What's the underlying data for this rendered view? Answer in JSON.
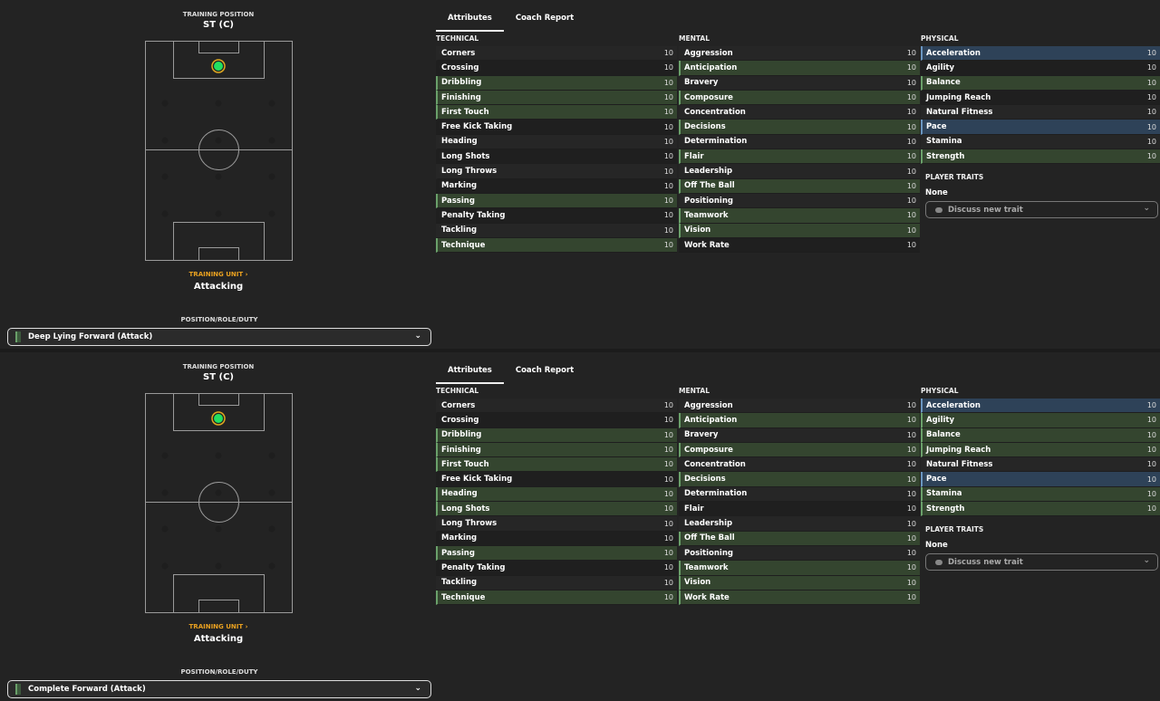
{
  "colors": {
    "key": "#34452f",
    "primary": "#2e4258",
    "accent": "#e8a020",
    "player": "#22e060"
  },
  "panels": [
    {
      "training_position_label": "TRAINING POSITION",
      "training_position": "ST (C)",
      "training_unit_label": "TRAINING UNIT ›",
      "training_unit": "Attacking",
      "prd_label": "POSITION/ROLE/DUTY",
      "role": "Deep Lying Forward (Attack)",
      "tabs": [
        "Attributes",
        "Coach Report"
      ],
      "columns": [
        {
          "title": "TECHNICAL",
          "rows": [
            {
              "name": "Corners",
              "value": "10",
              "hl": ""
            },
            {
              "name": "Crossing",
              "value": "10",
              "hl": ""
            },
            {
              "name": "Dribbling",
              "value": "10",
              "hl": "key"
            },
            {
              "name": "Finishing",
              "value": "10",
              "hl": "key"
            },
            {
              "name": "First Touch",
              "value": "10",
              "hl": "key"
            },
            {
              "name": "Free Kick Taking",
              "value": "10",
              "hl": ""
            },
            {
              "name": "Heading",
              "value": "10",
              "hl": ""
            },
            {
              "name": "Long Shots",
              "value": "10",
              "hl": ""
            },
            {
              "name": "Long Throws",
              "value": "10",
              "hl": ""
            },
            {
              "name": "Marking",
              "value": "10",
              "hl": ""
            },
            {
              "name": "Passing",
              "value": "10",
              "hl": "key"
            },
            {
              "name": "Penalty Taking",
              "value": "10",
              "hl": ""
            },
            {
              "name": "Tackling",
              "value": "10",
              "hl": ""
            },
            {
              "name": "Technique",
              "value": "10",
              "hl": "key"
            }
          ]
        },
        {
          "title": "MENTAL",
          "rows": [
            {
              "name": "Aggression",
              "value": "10",
              "hl": ""
            },
            {
              "name": "Anticipation",
              "value": "10",
              "hl": "key"
            },
            {
              "name": "Bravery",
              "value": "10",
              "hl": ""
            },
            {
              "name": "Composure",
              "value": "10",
              "hl": "key"
            },
            {
              "name": "Concentration",
              "value": "10",
              "hl": ""
            },
            {
              "name": "Decisions",
              "value": "10",
              "hl": "key"
            },
            {
              "name": "Determination",
              "value": "10",
              "hl": ""
            },
            {
              "name": "Flair",
              "value": "10",
              "hl": "key"
            },
            {
              "name": "Leadership",
              "value": "10",
              "hl": ""
            },
            {
              "name": "Off The Ball",
              "value": "10",
              "hl": "key"
            },
            {
              "name": "Positioning",
              "value": "10",
              "hl": ""
            },
            {
              "name": "Teamwork",
              "value": "10",
              "hl": "key"
            },
            {
              "name": "Vision",
              "value": "10",
              "hl": "key"
            },
            {
              "name": "Work Rate",
              "value": "10",
              "hl": ""
            }
          ]
        },
        {
          "title": "PHYSICAL",
          "rows": [
            {
              "name": "Acceleration",
              "value": "10",
              "hl": "prim"
            },
            {
              "name": "Agility",
              "value": "10",
              "hl": ""
            },
            {
              "name": "Balance",
              "value": "10",
              "hl": "key"
            },
            {
              "name": "Jumping Reach",
              "value": "10",
              "hl": ""
            },
            {
              "name": "Natural Fitness",
              "value": "10",
              "hl": ""
            },
            {
              "name": "Pace",
              "value": "10",
              "hl": "prim"
            },
            {
              "name": "Stamina",
              "value": "10",
              "hl": ""
            },
            {
              "name": "Strength",
              "value": "10",
              "hl": "key"
            }
          ]
        }
      ],
      "traits_label": "PLAYER TRAITS",
      "traits_value": "None",
      "trait_select": "Discuss new trait"
    },
    {
      "training_position_label": "TRAINING POSITION",
      "training_position": "ST (C)",
      "training_unit_label": "TRAINING UNIT ›",
      "training_unit": "Attacking",
      "prd_label": "POSITION/ROLE/DUTY",
      "role": "Complete Forward (Attack)",
      "tabs": [
        "Attributes",
        "Coach Report"
      ],
      "columns": [
        {
          "title": "TECHNICAL",
          "rows": [
            {
              "name": "Corners",
              "value": "10",
              "hl": ""
            },
            {
              "name": "Crossing",
              "value": "10",
              "hl": ""
            },
            {
              "name": "Dribbling",
              "value": "10",
              "hl": "key"
            },
            {
              "name": "Finishing",
              "value": "10",
              "hl": "key"
            },
            {
              "name": "First Touch",
              "value": "10",
              "hl": "key"
            },
            {
              "name": "Free Kick Taking",
              "value": "10",
              "hl": ""
            },
            {
              "name": "Heading",
              "value": "10",
              "hl": "key"
            },
            {
              "name": "Long Shots",
              "value": "10",
              "hl": "key"
            },
            {
              "name": "Long Throws",
              "value": "10",
              "hl": ""
            },
            {
              "name": "Marking",
              "value": "10",
              "hl": ""
            },
            {
              "name": "Passing",
              "value": "10",
              "hl": "key"
            },
            {
              "name": "Penalty Taking",
              "value": "10",
              "hl": ""
            },
            {
              "name": "Tackling",
              "value": "10",
              "hl": ""
            },
            {
              "name": "Technique",
              "value": "10",
              "hl": "key"
            }
          ]
        },
        {
          "title": "MENTAL",
          "rows": [
            {
              "name": "Aggression",
              "value": "10",
              "hl": ""
            },
            {
              "name": "Anticipation",
              "value": "10",
              "hl": "key"
            },
            {
              "name": "Bravery",
              "value": "10",
              "hl": ""
            },
            {
              "name": "Composure",
              "value": "10",
              "hl": "key"
            },
            {
              "name": "Concentration",
              "value": "10",
              "hl": ""
            },
            {
              "name": "Decisions",
              "value": "10",
              "hl": "key"
            },
            {
              "name": "Determination",
              "value": "10",
              "hl": ""
            },
            {
              "name": "Flair",
              "value": "10",
              "hl": ""
            },
            {
              "name": "Leadership",
              "value": "10",
              "hl": ""
            },
            {
              "name": "Off The Ball",
              "value": "10",
              "hl": "key"
            },
            {
              "name": "Positioning",
              "value": "10",
              "hl": ""
            },
            {
              "name": "Teamwork",
              "value": "10",
              "hl": "key"
            },
            {
              "name": "Vision",
              "value": "10",
              "hl": "key"
            },
            {
              "name": "Work Rate",
              "value": "10",
              "hl": "key"
            }
          ]
        },
        {
          "title": "PHYSICAL",
          "rows": [
            {
              "name": "Acceleration",
              "value": "10",
              "hl": "prim"
            },
            {
              "name": "Agility",
              "value": "10",
              "hl": "key"
            },
            {
              "name": "Balance",
              "value": "10",
              "hl": "key"
            },
            {
              "name": "Jumping Reach",
              "value": "10",
              "hl": "key"
            },
            {
              "name": "Natural Fitness",
              "value": "10",
              "hl": ""
            },
            {
              "name": "Pace",
              "value": "10",
              "hl": "prim"
            },
            {
              "name": "Stamina",
              "value": "10",
              "hl": "key"
            },
            {
              "name": "Strength",
              "value": "10",
              "hl": "key"
            }
          ]
        }
      ],
      "traits_label": "PLAYER TRAITS",
      "traits_value": "None",
      "trait_select": "Discuss new trait"
    }
  ]
}
